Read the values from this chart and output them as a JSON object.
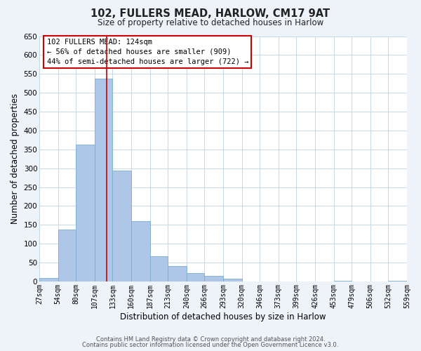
{
  "title": "102, FULLERS MEAD, HARLOW, CM17 9AT",
  "subtitle": "Size of property relative to detached houses in Harlow",
  "xlabel": "Distribution of detached houses by size in Harlow",
  "ylabel": "Number of detached properties",
  "bin_edges": [
    27,
    54,
    80,
    107,
    133,
    160,
    187,
    213,
    240,
    266,
    293,
    320,
    346,
    373,
    399,
    426,
    453,
    479,
    506,
    532,
    559
  ],
  "bin_labels": [
    "27sqm",
    "54sqm",
    "80sqm",
    "107sqm",
    "133sqm",
    "160sqm",
    "187sqm",
    "213sqm",
    "240sqm",
    "266sqm",
    "293sqm",
    "320sqm",
    "346sqm",
    "373sqm",
    "399sqm",
    "426sqm",
    "453sqm",
    "479sqm",
    "506sqm",
    "532sqm",
    "559sqm"
  ],
  "counts": [
    10,
    137,
    363,
    537,
    293,
    160,
    66,
    40,
    22,
    15,
    8,
    0,
    0,
    0,
    0,
    0,
    2,
    0,
    0,
    2
  ],
  "bar_color": "#aec6e8",
  "bar_edge_color": "#7aadd4",
  "marker_value": 124,
  "marker_color": "#cc0000",
  "ylim": [
    0,
    650
  ],
  "yticks": [
    0,
    50,
    100,
    150,
    200,
    250,
    300,
    350,
    400,
    450,
    500,
    550,
    600,
    650
  ],
  "annotation_title": "102 FULLERS MEAD: 124sqm",
  "annotation_line1": "← 56% of detached houses are smaller (909)",
  "annotation_line2": "44% of semi-detached houses are larger (722) →",
  "annotation_box_color": "#cc0000",
  "footer1": "Contains HM Land Registry data © Crown copyright and database right 2024.",
  "footer2": "Contains public sector information licensed under the Open Government Licence v3.0.",
  "bg_color": "#eef2f9",
  "plot_bg_color": "#ffffff",
  "grid_color": "#c8d8ea"
}
